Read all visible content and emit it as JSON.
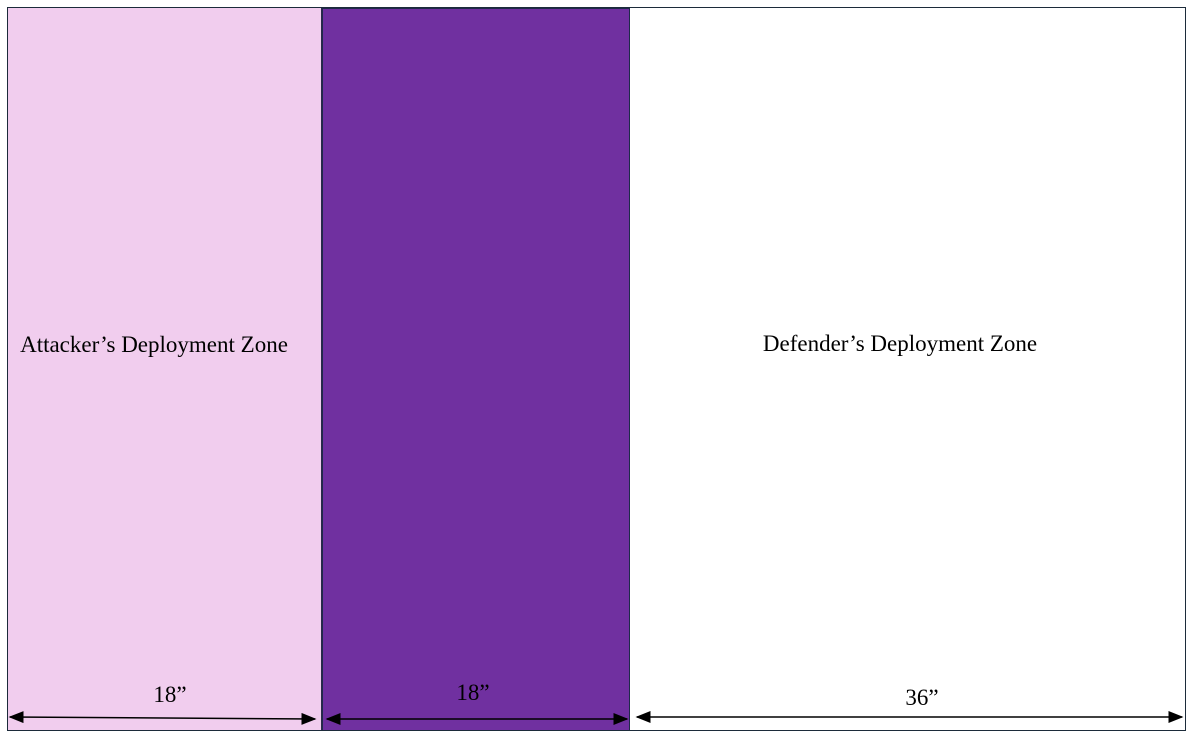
{
  "zones": [
    {
      "label": "Attacker’s Deployment Zone",
      "width": "18”"
    },
    {
      "width": "18”"
    },
    {
      "label": "Defender’s Deployment Zone",
      "width": "36”"
    }
  ]
}
